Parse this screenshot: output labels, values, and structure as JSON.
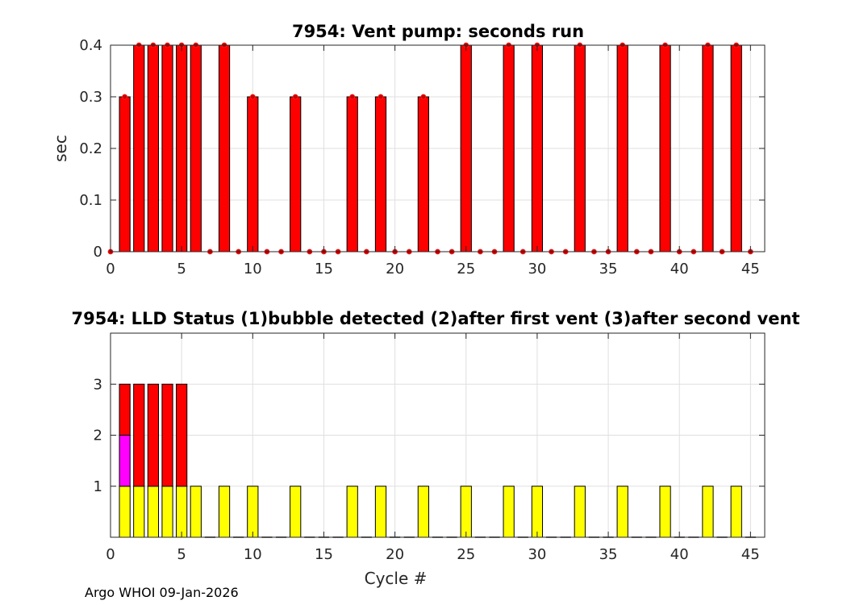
{
  "chart_data": [
    {
      "type": "bar",
      "title": "7954: Vent pump: seconds run",
      "xlabel": "",
      "ylabel": "sec",
      "xlim": [
        0,
        46
      ],
      "ylim": [
        0,
        0.4
      ],
      "xticks": [
        0,
        5,
        10,
        15,
        20,
        25,
        30,
        35,
        40,
        45
      ],
      "yticks": [
        0,
        0.1,
        0.2,
        0.3,
        0.4
      ],
      "ytick_labels": [
        "0",
        "0.1",
        "0.2",
        "0.3",
        "0.4"
      ],
      "grid": true,
      "bar_color": "#ff0000",
      "marker_color": "#cc0000",
      "x": [
        0,
        1,
        2,
        3,
        4,
        5,
        6,
        7,
        8,
        9,
        10,
        11,
        12,
        13,
        14,
        15,
        16,
        17,
        18,
        19,
        20,
        21,
        22,
        23,
        24,
        25,
        26,
        27,
        28,
        29,
        30,
        31,
        32,
        33,
        34,
        35,
        36,
        37,
        38,
        39,
        40,
        41,
        42,
        43,
        44,
        45
      ],
      "values": [
        0,
        0.3,
        0.4,
        0.4,
        0.4,
        0.4,
        0.4,
        0,
        0.4,
        0,
        0.3,
        0,
        0,
        0.3,
        0,
        0,
        0,
        0.3,
        0,
        0.3,
        0,
        0,
        0.3,
        0,
        0,
        0.4,
        0,
        0,
        0.4,
        0,
        0.4,
        0,
        0,
        0.4,
        0,
        0,
        0.4,
        0,
        0,
        0.4,
        0,
        0,
        0.4,
        0,
        0.4,
        0
      ]
    },
    {
      "type": "bar",
      "title": "7954: LLD Status   (1)bubble detected   (2)after first vent  (3)after second vent",
      "xlabel": "Cycle #",
      "ylabel": "",
      "xlim": [
        0,
        46
      ],
      "ylim": [
        0,
        4
      ],
      "xticks": [
        0,
        5,
        10,
        15,
        20,
        25,
        30,
        35,
        40,
        45
      ],
      "yticks": [
        1,
        2,
        3
      ],
      "ytick_labels": [
        "1",
        "2",
        "3"
      ],
      "grid": true,
      "stacked": true,
      "categories": [
        1,
        2,
        3,
        4,
        5,
        6,
        7,
        8,
        9,
        10,
        11,
        12,
        13,
        14,
        15,
        16,
        17,
        18,
        19,
        20,
        21,
        22,
        23,
        24,
        25,
        26,
        27,
        28,
        29,
        30,
        31,
        32,
        33,
        34,
        35,
        36,
        37,
        38,
        39,
        40,
        41,
        42,
        43,
        44,
        45
      ],
      "series": [
        {
          "color": "#ffff00",
          "values": [
            1,
            1,
            1,
            1,
            1,
            1,
            0,
            1,
            0,
            1,
            0,
            0,
            1,
            0,
            0,
            0,
            1,
            0,
            1,
            0,
            0,
            1,
            0,
            0,
            1,
            0,
            0,
            1,
            0,
            1,
            0,
            0,
            1,
            0,
            0,
            1,
            0,
            0,
            1,
            0,
            0,
            1,
            0,
            1,
            0
          ]
        },
        {
          "color": "#ff00ff",
          "values": [
            1,
            0,
            0,
            0,
            0,
            0,
            0,
            0,
            0,
            0,
            0,
            0,
            0,
            0,
            0,
            0,
            0,
            0,
            0,
            0,
            0,
            0,
            0,
            0,
            0,
            0,
            0,
            0,
            0,
            0,
            0,
            0,
            0,
            0,
            0,
            0,
            0,
            0,
            0,
            0,
            0,
            0,
            0,
            0,
            0
          ]
        },
        {
          "color": "#ff0000",
          "values": [
            1,
            2,
            2,
            2,
            2,
            0,
            0,
            0,
            0,
            0,
            0,
            0,
            0,
            0,
            0,
            0,
            0,
            0,
            0,
            0,
            0,
            0,
            0,
            0,
            0,
            0,
            0,
            0,
            0,
            0,
            0,
            0,
            0,
            0,
            0,
            0,
            0,
            0,
            0,
            0,
            0,
            0,
            0,
            0,
            0
          ]
        }
      ]
    }
  ],
  "footer": "Argo WHOI 09-Jan-2026"
}
